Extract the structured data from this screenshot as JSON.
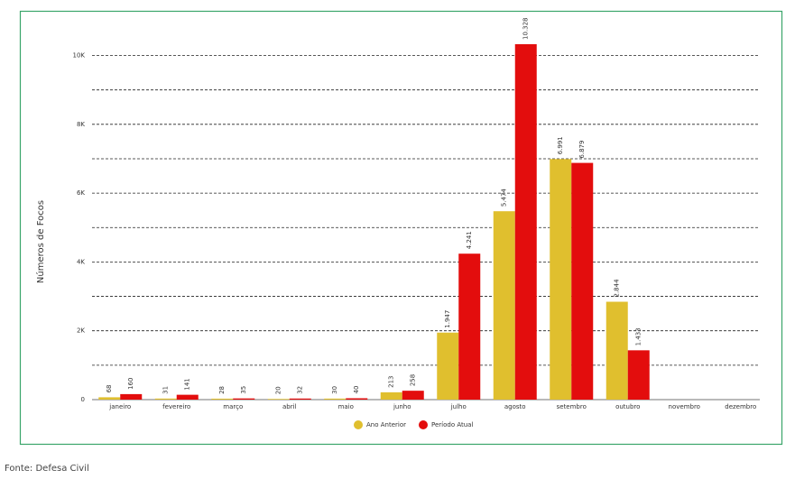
{
  "chart_data": {
    "type": "bar",
    "y_label": "Números de Focos",
    "categories": [
      "janeiro",
      "fevereiro",
      "março",
      "abril",
      "maio",
      "junho",
      "julho",
      "agosto",
      "setembro",
      "outubro",
      "novembro",
      "dezembro"
    ],
    "series": [
      {
        "name": "Ano Anterior",
        "color": "#e0bf2e",
        "values": [
          68,
          31,
          28,
          20,
          30,
          213,
          1947,
          5474,
          6991,
          2844,
          null,
          null
        ],
        "value_labels": [
          "68",
          "31",
          "28",
          "20",
          "30",
          "213",
          "1.947",
          "5.474",
          "6.991",
          "2.844",
          null,
          null
        ]
      },
      {
        "name": "Período Atual",
        "color": "#e30d0d",
        "values": [
          160,
          141,
          35,
          32,
          40,
          258,
          4241,
          10328,
          6879,
          1433,
          null,
          null
        ],
        "value_labels": [
          "160",
          "141",
          "35",
          "32",
          "40",
          "258",
          "4.241",
          "10.328",
          "6.879",
          "1.433",
          null,
          null
        ]
      }
    ],
    "ylim": [
      0,
      10800
    ],
    "yticks": [
      0,
      {
        "value": 2000,
        "label": "2K"
      },
      {
        "value": 4000,
        "label": "4K"
      },
      {
        "value": 6000,
        "label": "6K"
      },
      {
        "value": 8000,
        "label": "8K"
      },
      {
        "value": 10000,
        "label": "10K"
      }
    ],
    "minor_yticks": [
      1000,
      3000,
      5000,
      7000,
      9000
    ],
    "grid": true,
    "legend": "bottom",
    "source": "Fonte: Defesa Civil"
  }
}
